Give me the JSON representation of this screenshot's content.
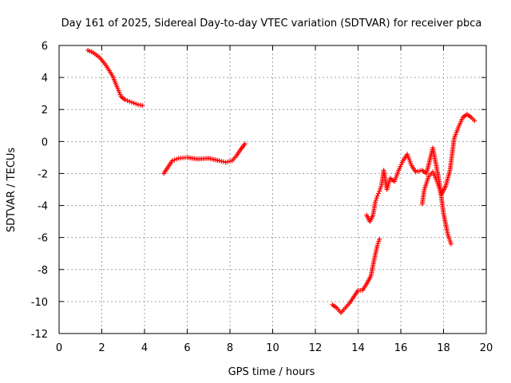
{
  "chart_data": {
    "type": "scatter",
    "title": "Day 161 of 2025, Sidereal Day-to-day VTEC variation (SDTVAR) for receiver pbca",
    "xlabel": "GPS time / hours",
    "ylabel": "SDTVAR / TECUs",
    "xlim": [
      0,
      20
    ],
    "ylim": [
      -12,
      6
    ],
    "xticks": [
      0,
      2,
      4,
      6,
      8,
      10,
      12,
      14,
      16,
      18,
      20
    ],
    "yticks": [
      -12,
      -10,
      -8,
      -6,
      -4,
      -2,
      0,
      2,
      4,
      6
    ],
    "grid": true,
    "marker": "+",
    "color": "#ff0000",
    "segments": [
      {
        "name": "segment-1",
        "x": [
          1.35,
          1.6,
          1.9,
          2.2,
          2.5,
          2.75,
          2.9,
          3.1,
          3.4,
          3.7,
          3.9
        ],
        "y": [
          5.7,
          5.55,
          5.25,
          4.75,
          4.1,
          3.3,
          2.8,
          2.6,
          2.45,
          2.3,
          2.25
        ]
      },
      {
        "name": "segment-2",
        "x": [
          4.9,
          5.1,
          5.3,
          5.6,
          6.0,
          6.5,
          7.0,
          7.5,
          7.8,
          8.1,
          8.3,
          8.5,
          8.7
        ],
        "y": [
          -2.0,
          -1.6,
          -1.2,
          -1.05,
          -1.0,
          -1.1,
          -1.05,
          -1.2,
          -1.3,
          -1.2,
          -0.9,
          -0.5,
          -0.15
        ]
      },
      {
        "name": "segment-3",
        "x": [
          12.8,
          13.0,
          13.2,
          13.4,
          13.6,
          13.8,
          14.0,
          14.2,
          14.4,
          14.6,
          14.75,
          14.9,
          15.0
        ],
        "y": [
          -10.2,
          -10.4,
          -10.7,
          -10.4,
          -10.1,
          -9.7,
          -9.3,
          -9.3,
          -8.9,
          -8.4,
          -7.4,
          -6.5,
          -6.1
        ]
      },
      {
        "name": "segment-4",
        "x": [
          14.4,
          14.55,
          14.7,
          14.8,
          14.9,
          15.0,
          15.1,
          15.2,
          15.35,
          15.5,
          15.7,
          15.9,
          16.1,
          16.3,
          16.5,
          16.7,
          17.0,
          17.2,
          17.5,
          17.8,
          18.0,
          18.2,
          18.35
        ],
        "y": [
          -4.6,
          -5.0,
          -4.6,
          -3.8,
          -3.4,
          -3.1,
          -2.7,
          -1.8,
          -3.0,
          -2.3,
          -2.5,
          -1.8,
          -1.2,
          -0.8,
          -1.5,
          -1.9,
          -1.8,
          -2.0,
          -0.4,
          -2.5,
          -4.5,
          -5.8,
          -6.4
        ]
      },
      {
        "name": "segment-5",
        "x": [
          17.0,
          17.1,
          17.3,
          17.5,
          17.7,
          17.9,
          18.1,
          18.3,
          18.5,
          18.7,
          18.9,
          19.1,
          19.3,
          19.45
        ],
        "y": [
          -3.9,
          -3.0,
          -2.2,
          -1.9,
          -2.5,
          -3.3,
          -2.8,
          -1.8,
          0.2,
          0.9,
          1.5,
          1.7,
          1.5,
          1.3
        ]
      }
    ]
  }
}
